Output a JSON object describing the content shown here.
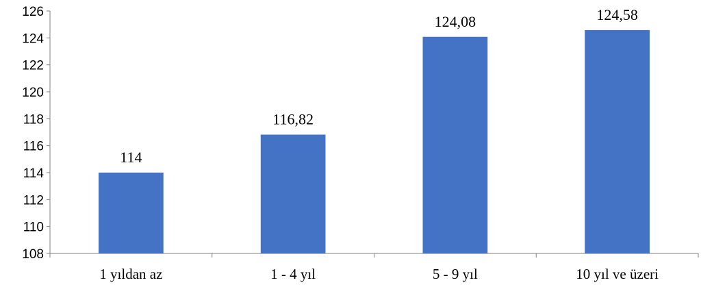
{
  "chart_data": {
    "type": "bar",
    "categories": [
      "1 yıldan az",
      "1 - 4 yıl",
      "5 - 9 yıl",
      "10 yıl ve üzeri"
    ],
    "values": [
      114,
      116.82,
      124.08,
      124.58
    ],
    "data_labels": [
      "114",
      "116,82",
      "124,08",
      "124,58"
    ],
    "title": "",
    "xlabel": "",
    "ylabel": "",
    "ylim": [
      108,
      126
    ],
    "yticks": [
      108,
      110,
      112,
      114,
      116,
      118,
      120,
      122,
      124,
      126
    ],
    "grid": false,
    "legend": "none",
    "colors": {
      "bar": "#4472C4",
      "axis": "#7f7f7f"
    }
  }
}
